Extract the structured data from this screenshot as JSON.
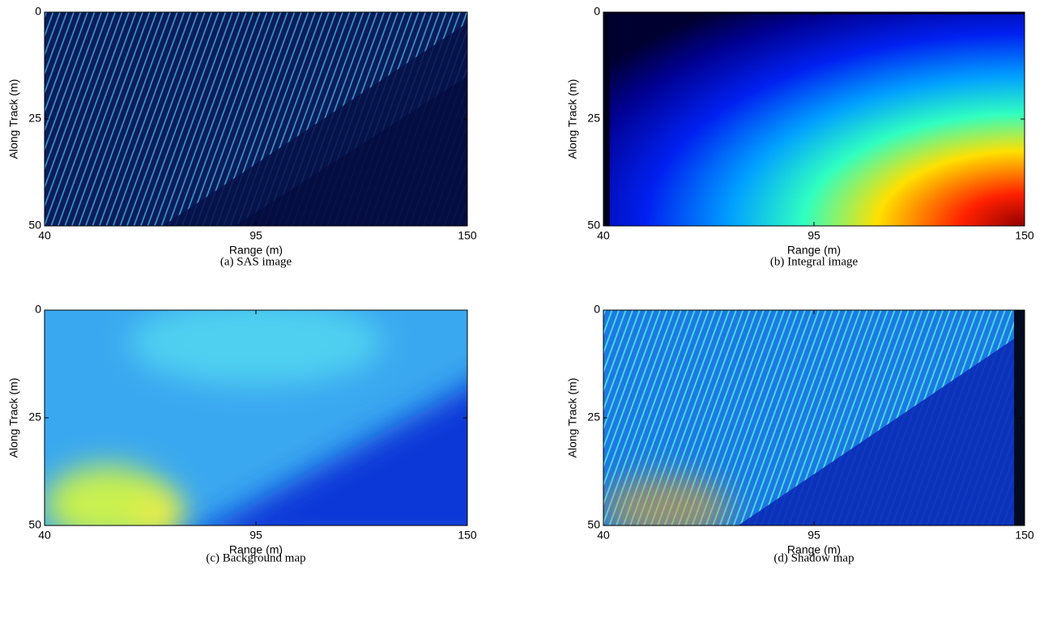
{
  "chart_data": [
    {
      "type": "heatmap",
      "caption": "(a)  SAS image",
      "xlabel": "Range (m)",
      "ylabel": "Along Track (m)",
      "xlim": [
        40,
        150
      ],
      "ylim": [
        0,
        50
      ],
      "xticks": [
        40,
        95,
        150
      ],
      "yticks": [
        0,
        25,
        50
      ],
      "y_reversed": true
    },
    {
      "type": "heatmap",
      "caption": "(b)  Integral image",
      "xlabel": "Range (m)",
      "ylabel": "Along Track (m)",
      "xlim": [
        40,
        150
      ],
      "ylim": [
        0,
        50
      ],
      "xticks": [
        40,
        95,
        150
      ],
      "yticks": [
        0,
        25,
        50
      ],
      "y_reversed": true
    },
    {
      "type": "heatmap",
      "caption": "(c)  Background map",
      "xlabel": "Range (m)",
      "ylabel": "Along Track (m)",
      "xlim": [
        40,
        150
      ],
      "ylim": [
        0,
        50
      ],
      "xticks": [
        40,
        95,
        150
      ],
      "yticks": [
        0,
        25,
        50
      ],
      "y_reversed": true
    },
    {
      "type": "heatmap",
      "caption": "(d)  Shadow map",
      "xlabel": "Range (m)",
      "ylabel": "Along Track (m)",
      "xlim": [
        40,
        150
      ],
      "ylim": [
        0,
        50
      ],
      "xticks": [
        40,
        95,
        150
      ],
      "yticks": [
        0,
        25,
        50
      ],
      "y_reversed": true
    }
  ]
}
